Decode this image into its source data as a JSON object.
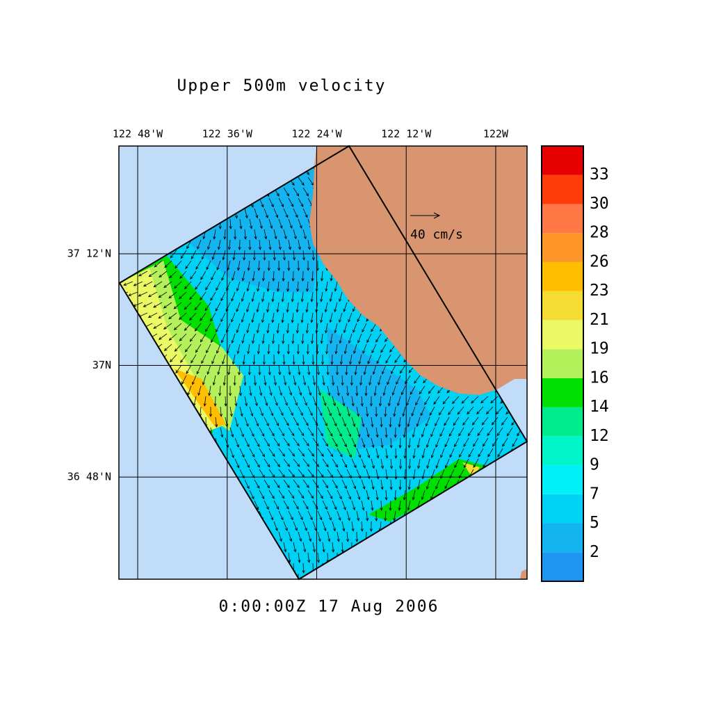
{
  "chart_data": {
    "type": "map",
    "title": "Upper 500m velocity",
    "time_label": "0:00:00Z  17 Aug 2006",
    "reference_vector_label": "40 cm/s",
    "xlim": [
      -122.842,
      -121.93
    ],
    "ylim": [
      36.617,
      37.393
    ],
    "xticks": [
      {
        "value": -122.8,
        "label": "122 48'W"
      },
      {
        "value": -122.6,
        "label": "122 36'W"
      },
      {
        "value": -122.4,
        "label": "122 24'W"
      },
      {
        "value": -122.2,
        "label": "122 12'W"
      },
      {
        "value": -122.0,
        "label": "122W"
      }
    ],
    "yticks": [
      {
        "value": 37.2,
        "label": "37 12'N"
      },
      {
        "value": 37.0,
        "label": "37N"
      },
      {
        "value": 36.8,
        "label": "36 48'N"
      }
    ],
    "grid": true,
    "ocean_color": "#c0dcf8",
    "land_color": "#d99470",
    "colorbar": {
      "ticks": [
        2,
        5,
        7,
        9,
        12,
        14,
        16,
        19,
        21,
        23,
        26,
        28,
        30,
        33
      ],
      "colors": [
        "#1e96f0",
        "#14b4f0",
        "#00d2f5",
        "#00f0fa",
        "#00f5c8",
        "#00eb8c",
        "#00e000",
        "#b4f05a",
        "#ebfa64",
        "#f5dc32",
        "#ffbe00",
        "#ff9628",
        "#ff7846",
        "#ff3c0a",
        "#e60000"
      ]
    }
  }
}
